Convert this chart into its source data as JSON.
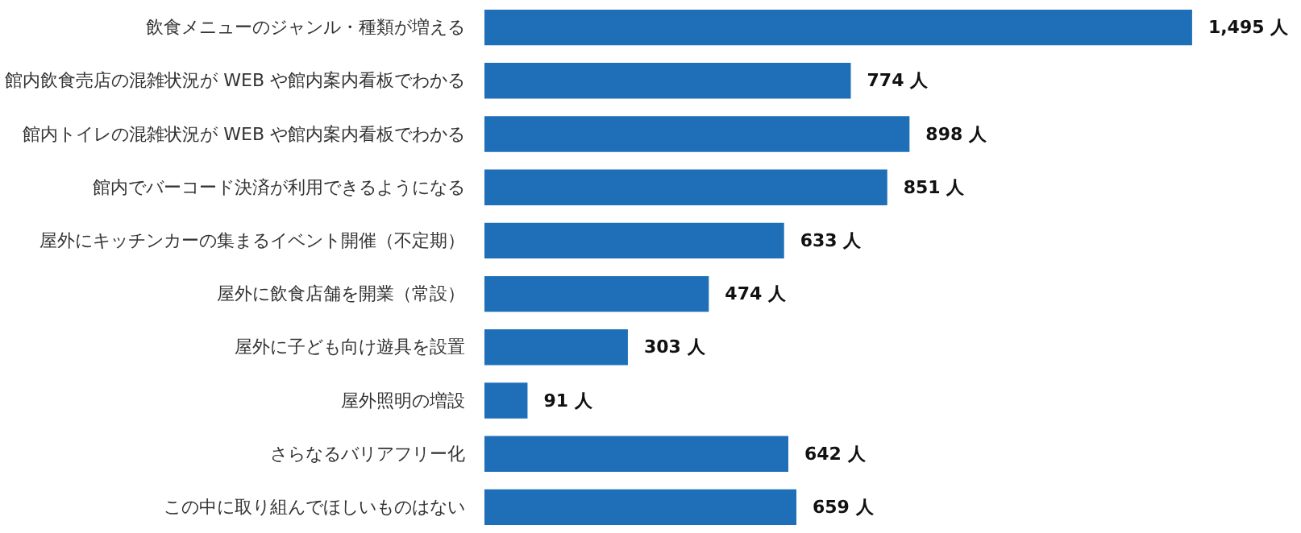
{
  "chart_data": {
    "type": "bar",
    "orientation": "horizontal",
    "categories": [
      "飲食メニューのジャンル・種類が増える",
      "館内飲食売店の混雑状況が WEB や館内案内看板でわかる",
      "館内トイレの混雑状況が WEB や館内案内看板でわかる",
      "館内でバーコード決済が利用できるようになる",
      "屋外にキッチンカーの集まるイベント開催（不定期）",
      "屋外に飲食店舗を開業（常設）",
      "屋外に子ども向け遊具を設置",
      "屋外照明の増設",
      "さらなるバリアフリー化",
      "この中に取り組んでほしいものはない"
    ],
    "values": [
      1495,
      774,
      898,
      851,
      633,
      474,
      303,
      91,
      642,
      659
    ],
    "value_labels": [
      "1,495 人",
      "774 人",
      "898 人",
      "851 人",
      "633 人",
      "474 人",
      "303 人",
      "91 人",
      "642 人",
      "659 人"
    ],
    "color": "#1e6fb8",
    "grid": false
  }
}
